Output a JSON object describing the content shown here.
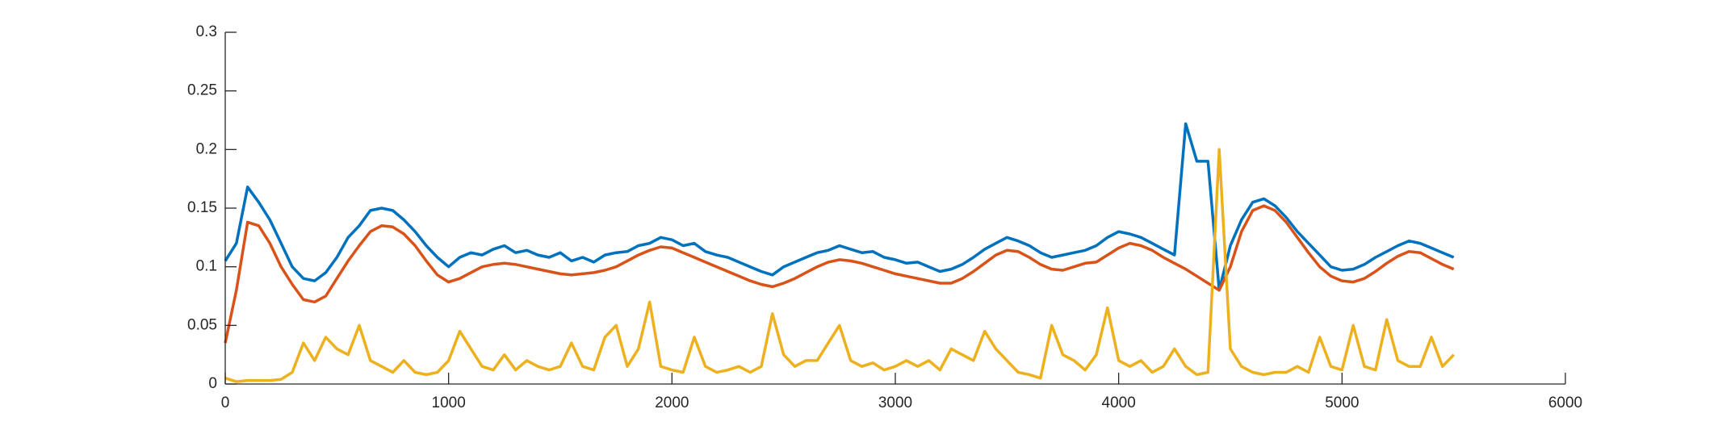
{
  "chart_data": {
    "type": "line",
    "x": [
      0,
      50,
      100,
      150,
      200,
      250,
      300,
      350,
      400,
      450,
      500,
      550,
      600,
      650,
      700,
      750,
      800,
      850,
      900,
      950,
      1000,
      1050,
      1100,
      1150,
      1200,
      1250,
      1300,
      1350,
      1400,
      1450,
      1500,
      1550,
      1600,
      1650,
      1700,
      1750,
      1800,
      1850,
      1900,
      1950,
      2000,
      2050,
      2100,
      2150,
      2200,
      2250,
      2300,
      2350,
      2400,
      2450,
      2500,
      2550,
      2600,
      2650,
      2700,
      2750,
      2800,
      2850,
      2900,
      2950,
      3000,
      3050,
      3100,
      3150,
      3200,
      3250,
      3300,
      3350,
      3400,
      3450,
      3500,
      3550,
      3600,
      3650,
      3700,
      3750,
      3800,
      3850,
      3900,
      3950,
      4000,
      4050,
      4100,
      4150,
      4200,
      4250,
      4300,
      4350,
      4400,
      4450,
      4500,
      4550,
      4600,
      4650,
      4700,
      4750,
      4800,
      4850,
      4900,
      4950,
      5000,
      5050,
      5100,
      5150,
      5200,
      5250,
      5300,
      5350,
      5400,
      5450,
      5500
    ],
    "series": [
      {
        "color": "#0072bd",
        "values": [
          0.105,
          0.12,
          0.168,
          0.155,
          0.14,
          0.12,
          0.1,
          0.09,
          0.088,
          0.095,
          0.108,
          0.125,
          0.135,
          0.148,
          0.15,
          0.148,
          0.14,
          0.13,
          0.118,
          0.108,
          0.1,
          0.108,
          0.112,
          0.11,
          0.115,
          0.118,
          0.112,
          0.114,
          0.11,
          0.108,
          0.112,
          0.105,
          0.108,
          0.104,
          0.11,
          0.112,
          0.113,
          0.118,
          0.12,
          0.125,
          0.123,
          0.118,
          0.12,
          0.113,
          0.11,
          0.108,
          0.104,
          0.1,
          0.096,
          0.093,
          0.1,
          0.104,
          0.108,
          0.112,
          0.114,
          0.118,
          0.115,
          0.112,
          0.113,
          0.108,
          0.106,
          0.103,
          0.104,
          0.1,
          0.096,
          0.098,
          0.102,
          0.108,
          0.115,
          0.12,
          0.125,
          0.122,
          0.118,
          0.112,
          0.108,
          0.11,
          0.112,
          0.114,
          0.118,
          0.125,
          0.13,
          0.128,
          0.125,
          0.12,
          0.115,
          0.11,
          0.222,
          0.19,
          0.19,
          0.08,
          0.118,
          0.14,
          0.155,
          0.158,
          0.152,
          0.142,
          0.13,
          0.12,
          0.11,
          0.1,
          0.097,
          0.098,
          0.102,
          0.108,
          0.113,
          0.118,
          0.122,
          0.12,
          0.116,
          0.112,
          0.108
        ]
      },
      {
        "color": "#d95319",
        "values": [
          0.035,
          0.08,
          0.138,
          0.135,
          0.12,
          0.1,
          0.085,
          0.072,
          0.07,
          0.075,
          0.09,
          0.105,
          0.118,
          0.13,
          0.135,
          0.134,
          0.128,
          0.118,
          0.105,
          0.093,
          0.087,
          0.09,
          0.095,
          0.1,
          0.102,
          0.103,
          0.102,
          0.1,
          0.098,
          0.096,
          0.094,
          0.093,
          0.094,
          0.095,
          0.097,
          0.1,
          0.105,
          0.11,
          0.114,
          0.117,
          0.116,
          0.112,
          0.108,
          0.104,
          0.1,
          0.096,
          0.092,
          0.088,
          0.085,
          0.083,
          0.086,
          0.09,
          0.095,
          0.1,
          0.104,
          0.106,
          0.105,
          0.103,
          0.1,
          0.097,
          0.094,
          0.092,
          0.09,
          0.088,
          0.086,
          0.086,
          0.09,
          0.096,
          0.103,
          0.11,
          0.114,
          0.113,
          0.108,
          0.102,
          0.098,
          0.097,
          0.1,
          0.103,
          0.104,
          0.11,
          0.116,
          0.12,
          0.118,
          0.114,
          0.108,
          0.103,
          0.098,
          0.092,
          0.086,
          0.08,
          0.1,
          0.13,
          0.148,
          0.152,
          0.148,
          0.138,
          0.125,
          0.112,
          0.1,
          0.092,
          0.088,
          0.087,
          0.09,
          0.096,
          0.103,
          0.109,
          0.113,
          0.112,
          0.107,
          0.102,
          0.098
        ]
      },
      {
        "color": "#edb120",
        "values": [
          0.005,
          0.002,
          0.003,
          0.003,
          0.003,
          0.004,
          0.01,
          0.035,
          0.02,
          0.04,
          0.03,
          0.025,
          0.05,
          0.02,
          0.015,
          0.01,
          0.02,
          0.01,
          0.008,
          0.01,
          0.02,
          0.045,
          0.03,
          0.015,
          0.012,
          0.025,
          0.012,
          0.02,
          0.015,
          0.012,
          0.015,
          0.035,
          0.015,
          0.012,
          0.04,
          0.05,
          0.015,
          0.03,
          0.07,
          0.015,
          0.012,
          0.01,
          0.04,
          0.015,
          0.01,
          0.012,
          0.015,
          0.01,
          0.015,
          0.06,
          0.025,
          0.015,
          0.02,
          0.02,
          0.035,
          0.05,
          0.02,
          0.015,
          0.018,
          0.012,
          0.015,
          0.02,
          0.015,
          0.02,
          0.012,
          0.03,
          0.025,
          0.02,
          0.045,
          0.03,
          0.02,
          0.01,
          0.008,
          0.005,
          0.05,
          0.025,
          0.02,
          0.012,
          0.025,
          0.065,
          0.02,
          0.015,
          0.02,
          0.01,
          0.015,
          0.03,
          0.015,
          0.008,
          0.01,
          0.2,
          0.03,
          0.015,
          0.01,
          0.008,
          0.01,
          0.01,
          0.015,
          0.01,
          0.04,
          0.015,
          0.012,
          0.05,
          0.015,
          0.012,
          0.055,
          0.02,
          0.015,
          0.015,
          0.04,
          0.015,
          0.025
        ]
      }
    ],
    "xlim": [
      0,
      6000
    ],
    "xticks": [
      0,
      1000,
      2000,
      3000,
      4000,
      5000,
      6000
    ],
    "ylim": [
      0,
      0.3
    ],
    "yticks": [
      0,
      0.05,
      0.1,
      0.15,
      0.2,
      0.25,
      0.3
    ]
  }
}
